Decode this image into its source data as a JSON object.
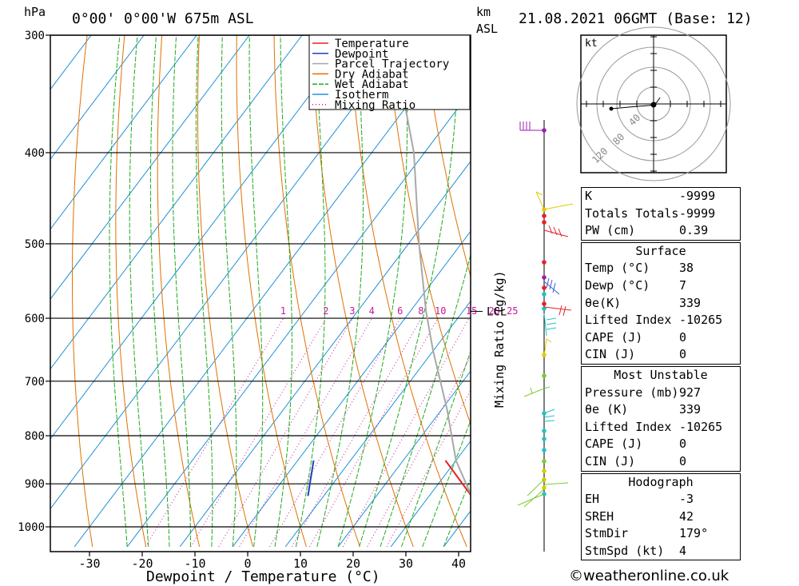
{
  "header": {
    "location": "0°00' 0°00'W 675m ASL",
    "datetime": "21.08.2021 06GMT (Base: 12)",
    "hpa_label": "hPa",
    "km_label": "km",
    "asl_label": "ASL"
  },
  "chart_data": {
    "type": "skew-t",
    "xlabel": "Dewpoint / Temperature (°C)",
    "ylabel": "Mixing Ratio (g/kg)",
    "pressure_ticks": [
      300,
      400,
      500,
      600,
      700,
      800,
      900,
      1000
    ],
    "temperature_ticks": [
      -30,
      -20,
      -10,
      0,
      10,
      20,
      30,
      40
    ],
    "xlim": [
      -38,
      42
    ],
    "ylim_hpa": [
      1050,
      300
    ],
    "mixing_ratio_labels": [
      1,
      2,
      3,
      4,
      6,
      8,
      10,
      15,
      20,
      25
    ],
    "lcl_label": "LCL",
    "lcl_pressure": 590,
    "legend": [
      "Temperature",
      "Dewpoint",
      "Parcel Trajectory",
      "Dry Adiabat",
      "Wet Adiabat",
      "Isotherm",
      "Mixing Ratio"
    ],
    "series": [
      {
        "name": "Temperature",
        "color": "#e8202a",
        "points": [
          [
            927,
            38
          ],
          [
            850,
            28
          ]
        ]
      },
      {
        "name": "Dewpoint",
        "color": "#1f3fbf",
        "points": [
          [
            927,
            7
          ],
          [
            850,
            3
          ]
        ]
      },
      {
        "name": "Parcel Trajectory",
        "color": "#a8a8a8",
        "points": [
          [
            927,
            38
          ],
          [
            850,
            30
          ],
          [
            750,
            21
          ],
          [
            650,
            10
          ],
          [
            590,
            3
          ],
          [
            500,
            -8
          ],
          [
            400,
            -22
          ],
          [
            300,
            -43
          ]
        ]
      }
    ],
    "colors": {
      "temperature": "#e8202a",
      "dewpoint": "#1f3fbf",
      "parcel": "#a8a8a8",
      "dry_adiabat": "#e07000",
      "wet_adiabat": "#1faa1f",
      "isotherm": "#2090d8",
      "mixing_ratio": "#c8179a"
    }
  },
  "hodograph": {
    "unit_label": "kt",
    "ring_labels": [
      "40",
      "80",
      "120"
    ]
  },
  "indices": {
    "k": {
      "label": "K",
      "value": "-9999"
    },
    "totals": {
      "label": "Totals Totals",
      "value": "-9999"
    },
    "pw": {
      "label": "PW (cm)",
      "value": "0.39"
    }
  },
  "surface": {
    "title": "Surface",
    "rows": [
      {
        "label": "Temp (°C)",
        "value": "38"
      },
      {
        "label": "Dewp (°C)",
        "value": "7"
      },
      {
        "label": "θe(K)",
        "value": "339"
      },
      {
        "label": "Lifted Index",
        "value": "-10265"
      },
      {
        "label": "CAPE (J)",
        "value": "0"
      },
      {
        "label": "CIN (J)",
        "value": "0"
      }
    ]
  },
  "most_unstable": {
    "title": "Most Unstable",
    "rows": [
      {
        "label": "Pressure (mb)",
        "value": "927"
      },
      {
        "label": "θe (K)",
        "value": "339"
      },
      {
        "label": "Lifted Index",
        "value": "-10265"
      },
      {
        "label": "CAPE (J)",
        "value": "0"
      },
      {
        "label": "CIN (J)",
        "value": "0"
      }
    ]
  },
  "hodograph_stats": {
    "title": "Hodograph",
    "rows": [
      {
        "label": "EH",
        "value": "-3"
      },
      {
        "label": "SREH",
        "value": "42"
      },
      {
        "label": "StmDir",
        "value": "179°"
      },
      {
        "label": "StmSpd (kt)",
        "value": "4"
      }
    ]
  },
  "footer": {
    "copyright": "©weatheronline.co.uk"
  }
}
